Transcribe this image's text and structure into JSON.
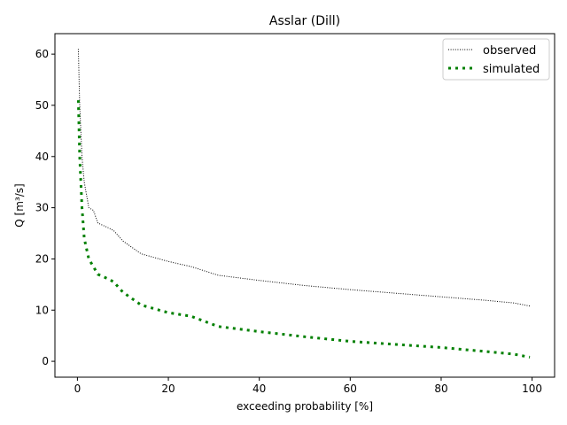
{
  "chart_data": {
    "type": "line",
    "title": "Asslar (Dill)",
    "xlabel": "exceeding probability [%]",
    "ylabel": "Q [m³/s]",
    "xlim": [
      -4.95,
      104.95
    ],
    "ylim": [
      -3.1,
      64
    ],
    "xticks": [
      0,
      20,
      40,
      60,
      80,
      100
    ],
    "yticks": [
      0,
      10,
      20,
      30,
      40,
      50,
      60
    ],
    "grid": false,
    "legend_position": "top-right",
    "series": [
      {
        "name": "observed",
        "color": "#000000",
        "style": "dotted-thin",
        "x": [
          0.2,
          0.5,
          1,
          1.5,
          2.5,
          3.5,
          4.5,
          7,
          8,
          10,
          14,
          20,
          25,
          31,
          40,
          50,
          60,
          70,
          80,
          90,
          96,
          99.5
        ],
        "y": [
          61,
          50,
          40,
          35,
          30,
          29.5,
          27,
          26,
          25.5,
          23.5,
          21,
          19.5,
          18.5,
          16.8,
          15.8,
          14.8,
          14,
          13.3,
          12.6,
          11.9,
          11.4,
          10.8
        ]
      },
      {
        "name": "simulated",
        "color": "#008000",
        "style": "dotted-thick",
        "x": [
          0.2,
          0.5,
          1,
          1.5,
          2.5,
          4.5,
          7,
          8,
          10,
          14,
          20,
          25,
          31,
          40,
          50,
          60,
          70,
          80,
          90,
          96,
          99.5
        ],
        "y": [
          51,
          40,
          30,
          24,
          20,
          17,
          16,
          15.5,
          13.5,
          11,
          9.5,
          8.8,
          6.8,
          5.8,
          4.8,
          3.9,
          3.3,
          2.7,
          1.9,
          1.4,
          0.8
        ]
      }
    ]
  }
}
